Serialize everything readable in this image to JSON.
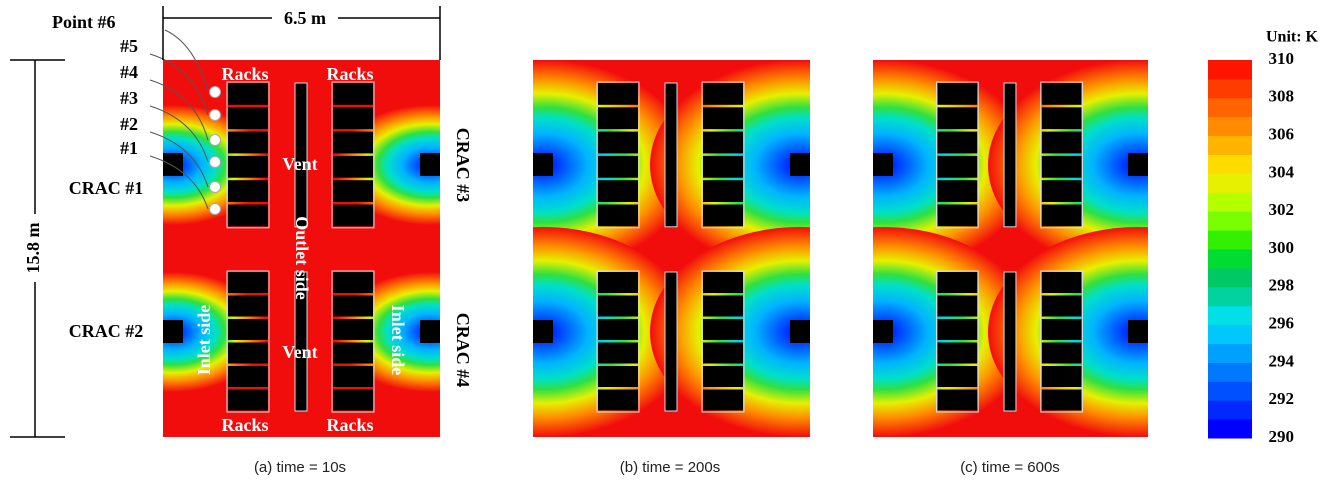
{
  "panels": [
    {
      "caption": "(a) time = 10s"
    },
    {
      "caption": "(b) time = 200s"
    },
    {
      "caption": "(c) time = 600s"
    }
  ],
  "annotations": {
    "width": "6.5 m",
    "height": "15.8 m",
    "points": [
      "Point #6",
      "#5",
      "#4",
      "#3",
      "#2",
      "#1"
    ],
    "racks": [
      "Racks",
      "Racks",
      "Racks",
      "Racks"
    ],
    "cracs": [
      "CRAC #1",
      "CRAC #2",
      "CRAC #3",
      "CRAC #4"
    ],
    "vents": [
      "Vent",
      "Vent"
    ],
    "outlet": "Outlet side",
    "inlets": [
      "Inlet side",
      "Inlet side"
    ]
  },
  "colorbar": {
    "unit": "Unit: K",
    "lim": [
      290,
      310
    ],
    "ticks": [
      290,
      292,
      294,
      296,
      298,
      300,
      302,
      304,
      306,
      308,
      310
    ],
    "colors": [
      "#0000ff",
      "#0028ff",
      "#0050ff",
      "#0078ff",
      "#00a0ff",
      "#00c8ff",
      "#00e0e6",
      "#00d2a0",
      "#00c864",
      "#00dc32",
      "#32f000",
      "#78ff00",
      "#b4ff00",
      "#e6f000",
      "#ffdc00",
      "#ffb400",
      "#ff8c00",
      "#ff6400",
      "#ff3c00",
      "#ff1400"
    ]
  }
}
